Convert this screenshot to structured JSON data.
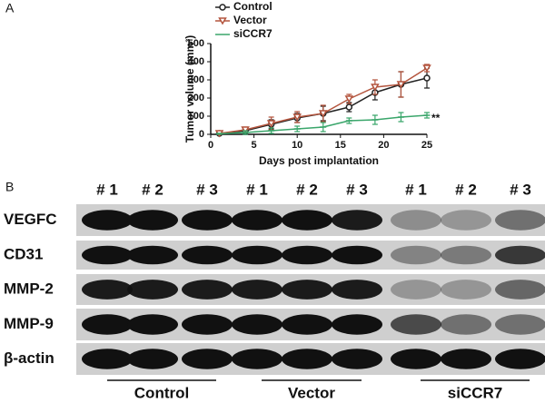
{
  "chart_data": {
    "type": "line",
    "panel_label": "A",
    "xlabel": "Days post implantation",
    "ylabel": "Tumor volume (mm³)",
    "x": [
      1,
      4,
      7,
      10,
      13,
      16,
      19,
      22,
      25
    ],
    "xlim": [
      0,
      25
    ],
    "xticks": [
      0,
      5,
      10,
      15,
      20,
      25
    ],
    "ylim": [
      0,
      500
    ],
    "yticks": [
      0,
      100,
      200,
      300,
      400,
      500
    ],
    "grid": false,
    "legend": "upper left",
    "annotation": "**",
    "series": [
      {
        "name": "Control",
        "color": "#222222",
        "marker": "circle",
        "values": [
          5,
          20,
          55,
          90,
          115,
          150,
          230,
          275,
          310
        ],
        "errors": [
          5,
          15,
          25,
          25,
          40,
          25,
          40,
          70,
          55
        ]
      },
      {
        "name": "Vector",
        "color": "#b4553e",
        "marker": "triangle",
        "values": [
          5,
          25,
          60,
          95,
          115,
          195,
          260,
          275,
          365
        ],
        "errors": [
          5,
          15,
          35,
          30,
          45,
          25,
          40,
          70,
          20
        ]
      },
      {
        "name": "siCCR7",
        "color": "#3aa66b",
        "marker": "dash",
        "values": [
          3,
          10,
          20,
          30,
          40,
          75,
          80,
          95,
          105
        ],
        "errors": [
          3,
          10,
          15,
          15,
          25,
          15,
          25,
          25,
          15
        ]
      }
    ]
  },
  "blot": {
    "panel_label": "B",
    "lanes": [
      "# 1",
      "# 2",
      "# 3",
      "# 1",
      "# 2",
      "# 3",
      "# 1",
      "# 2",
      "# 3"
    ],
    "rows": [
      "VEGFC",
      "CD31",
      "MMP-2",
      "MMP-9",
      "β-actin"
    ],
    "groups": [
      "Control",
      "Vector",
      "siCCR7"
    ]
  }
}
